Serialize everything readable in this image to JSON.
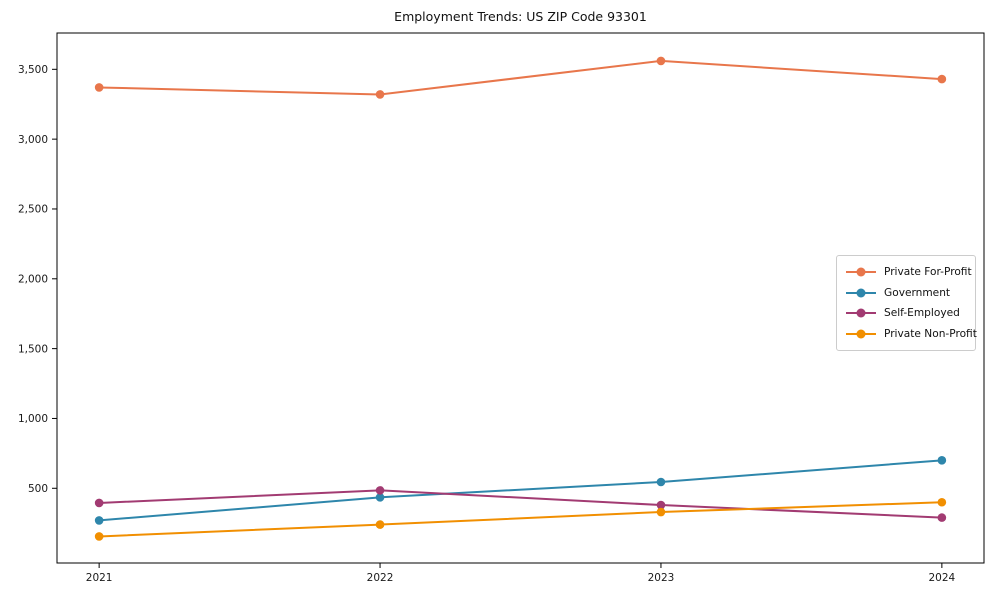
{
  "chart_data": {
    "type": "line",
    "title": "Employment Trends: US ZIP Code 93301",
    "x": [
      2021,
      2022,
      2023,
      2024
    ],
    "series": [
      {
        "name": "Private For-Profit",
        "color": "#E8764B",
        "values": [
          3370,
          3320,
          3560,
          3430
        ]
      },
      {
        "name": "Government",
        "color": "#2E86AB",
        "values": [
          270,
          435,
          545,
          700
        ]
      },
      {
        "name": "Self-Employed",
        "color": "#A23B72",
        "values": [
          395,
          485,
          380,
          290
        ]
      },
      {
        "name": "Private Non-Profit",
        "color": "#F18F01",
        "values": [
          155,
          240,
          330,
          400
        ]
      }
    ],
    "xlabel": "",
    "ylabel": "",
    "xticks": [
      "2021",
      "2022",
      "2023",
      "2024"
    ],
    "yticks": [
      500,
      1000,
      1500,
      2000,
      2500,
      3000,
      3500
    ],
    "xlim": [
      2020.85,
      2024.15
    ],
    "ylim": [
      -35,
      3760
    ],
    "grid": false,
    "legend_position": "center-right",
    "axis_color": "#000000",
    "tick_label_color": "#1a1a1a",
    "background_color": "#ffffff",
    "legend_border_color": "#cccccc"
  }
}
